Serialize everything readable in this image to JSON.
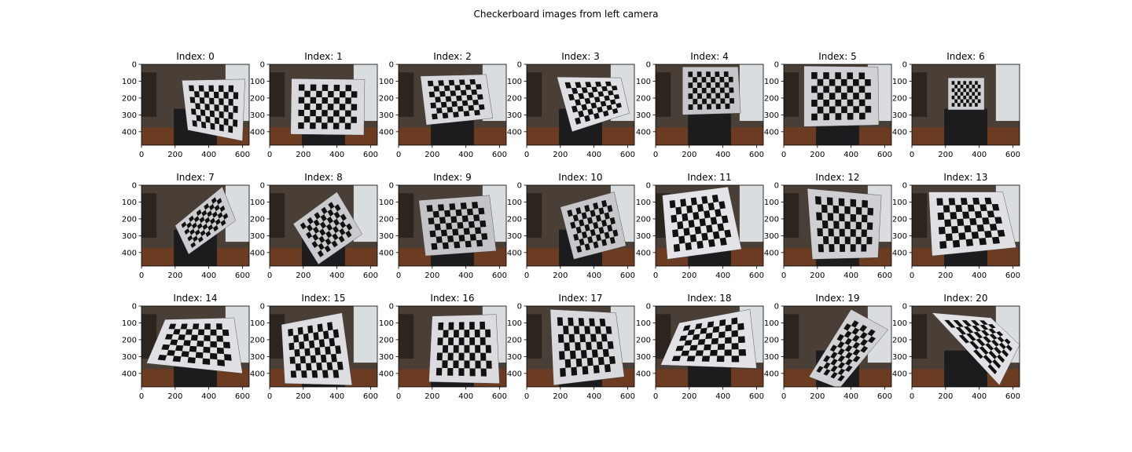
{
  "figure": {
    "title": "Checkerboard images from left camera"
  },
  "axes": {
    "x_ticks": [
      "0",
      "200",
      "400",
      "600"
    ],
    "x_tick_values": [
      0,
      200,
      400,
      600
    ],
    "y_ticks": [
      "0",
      "100",
      "200",
      "300",
      "400"
    ],
    "y_tick_values": [
      0,
      100,
      200,
      300,
      400
    ],
    "xlim": [
      0,
      640
    ],
    "ylim": [
      480,
      0
    ]
  },
  "panels": [
    {
      "title": "Index: 0",
      "board": [
        [
          240,
          95
        ],
        [
          615,
          88
        ],
        [
          600,
          455
        ],
        [
          275,
          390
        ]
      ],
      "brightness": 0.75
    },
    {
      "title": "Index: 1",
      "board": [
        [
          130,
          85
        ],
        [
          565,
          90
        ],
        [
          560,
          420
        ],
        [
          125,
          415
        ]
      ],
      "brightness": 0.72
    },
    {
      "title": "Index: 2",
      "board": [
        [
          130,
          70
        ],
        [
          520,
          60
        ],
        [
          560,
          320
        ],
        [
          165,
          360
        ]
      ],
      "brightness": 0.7
    },
    {
      "title": "Index: 3",
      "board": [
        [
          180,
          75
        ],
        [
          560,
          80
        ],
        [
          610,
          290
        ],
        [
          270,
          400
        ]
      ],
      "brightness": 0.78
    },
    {
      "title": "Index: 4",
      "board": [
        [
          160,
          15
        ],
        [
          490,
          15
        ],
        [
          505,
          290
        ],
        [
          160,
          300
        ]
      ],
      "brightness": 0.5
    },
    {
      "title": "Index: 5",
      "board": [
        [
          120,
          10
        ],
        [
          560,
          15
        ],
        [
          565,
          360
        ],
        [
          120,
          370
        ]
      ],
      "brightness": 0.62
    },
    {
      "title": "Index: 6",
      "board": [
        [
          215,
          80
        ],
        [
          430,
          80
        ],
        [
          430,
          270
        ],
        [
          215,
          270
        ]
      ],
      "brightness": 0.6
    },
    {
      "title": "Index: 7",
      "board": [
        [
          200,
          240
        ],
        [
          480,
          10
        ],
        [
          560,
          210
        ],
        [
          280,
          410
        ]
      ],
      "brightness": 0.58
    },
    {
      "title": "Index: 8",
      "board": [
        [
          140,
          230
        ],
        [
          400,
          40
        ],
        [
          550,
          290
        ],
        [
          290,
          470
        ]
      ],
      "brightness": 0.55
    },
    {
      "title": "Index: 9",
      "board": [
        [
          120,
          90
        ],
        [
          540,
          60
        ],
        [
          580,
          390
        ],
        [
          160,
          420
        ]
      ],
      "brightness": 0.48
    },
    {
      "title": "Index: 10",
      "board": [
        [
          200,
          130
        ],
        [
          520,
          40
        ],
        [
          590,
          360
        ],
        [
          280,
          440
        ]
      ],
      "brightness": 0.52
    },
    {
      "title": "Index: 11",
      "board": [
        [
          40,
          60
        ],
        [
          430,
          10
        ],
        [
          510,
          380
        ],
        [
          70,
          440
        ]
      ],
      "brightness": 0.82
    },
    {
      "title": "Index: 12",
      "board": [
        [
          140,
          20
        ],
        [
          580,
          60
        ],
        [
          560,
          430
        ],
        [
          170,
          440
        ]
      ],
      "brightness": 0.6
    },
    {
      "title": "Index: 13",
      "board": [
        [
          100,
          40
        ],
        [
          540,
          40
        ],
        [
          620,
          370
        ],
        [
          120,
          420
        ]
      ],
      "brightness": 0.78
    },
    {
      "title": "Index: 14",
      "board": [
        [
          140,
          80
        ],
        [
          550,
          70
        ],
        [
          600,
          400
        ],
        [
          30,
          340
        ]
      ],
      "brightness": 0.78
    },
    {
      "title": "Index: 15",
      "board": [
        [
          70,
          110
        ],
        [
          430,
          40
        ],
        [
          490,
          470
        ],
        [
          90,
          460
        ]
      ],
      "brightness": 0.76
    },
    {
      "title": "Index: 16",
      "board": [
        [
          200,
          60
        ],
        [
          580,
          50
        ],
        [
          600,
          460
        ],
        [
          180,
          450
        ]
      ],
      "brightness": 0.74
    },
    {
      "title": "Index: 17",
      "board": [
        [
          140,
          20
        ],
        [
          530,
          40
        ],
        [
          580,
          420
        ],
        [
          160,
          470
        ]
      ],
      "brightness": 0.7
    },
    {
      "title": "Index: 18",
      "board": [
        [
          140,
          100
        ],
        [
          560,
          20
        ],
        [
          600,
          370
        ],
        [
          30,
          350
        ]
      ],
      "brightness": 0.8
    },
    {
      "title": "Index: 19",
      "board": [
        [
          150,
          420
        ],
        [
          400,
          20
        ],
        [
          620,
          140
        ],
        [
          330,
          490
        ]
      ],
      "brightness": 0.62
    },
    {
      "title": "Index: 20",
      "board": [
        [
          120,
          40
        ],
        [
          470,
          70
        ],
        [
          640,
          230
        ],
        [
          520,
          470
        ]
      ],
      "brightness": 0.8
    }
  ]
}
